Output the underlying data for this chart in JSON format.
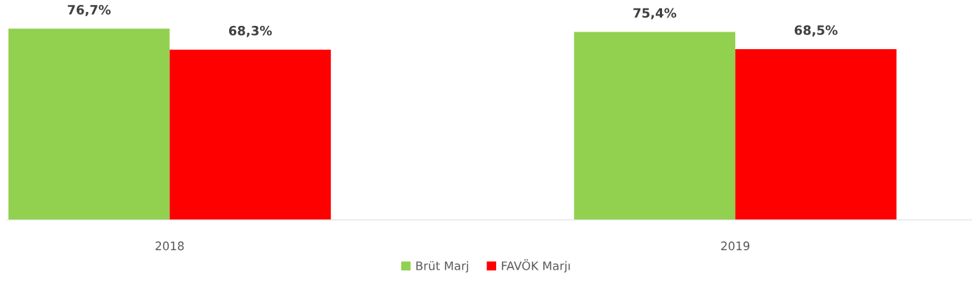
{
  "chart_data": {
    "type": "bar",
    "categories": [
      "2018",
      "2019"
    ],
    "series": [
      {
        "name": "Brüt Marj",
        "color": "#92d050",
        "values": [
          76.7,
          75.4
        ],
        "value_labels": [
          "76,7%",
          "75,4%"
        ]
      },
      {
        "name": "FAVÖK Marjı",
        "color": "#ff0000",
        "values": [
          68.3,
          68.5
        ],
        "value_labels": [
          "68,3%",
          "68,5%"
        ]
      }
    ],
    "tick_labels": "x",
    "grid": false,
    "legend": "bottom"
  }
}
